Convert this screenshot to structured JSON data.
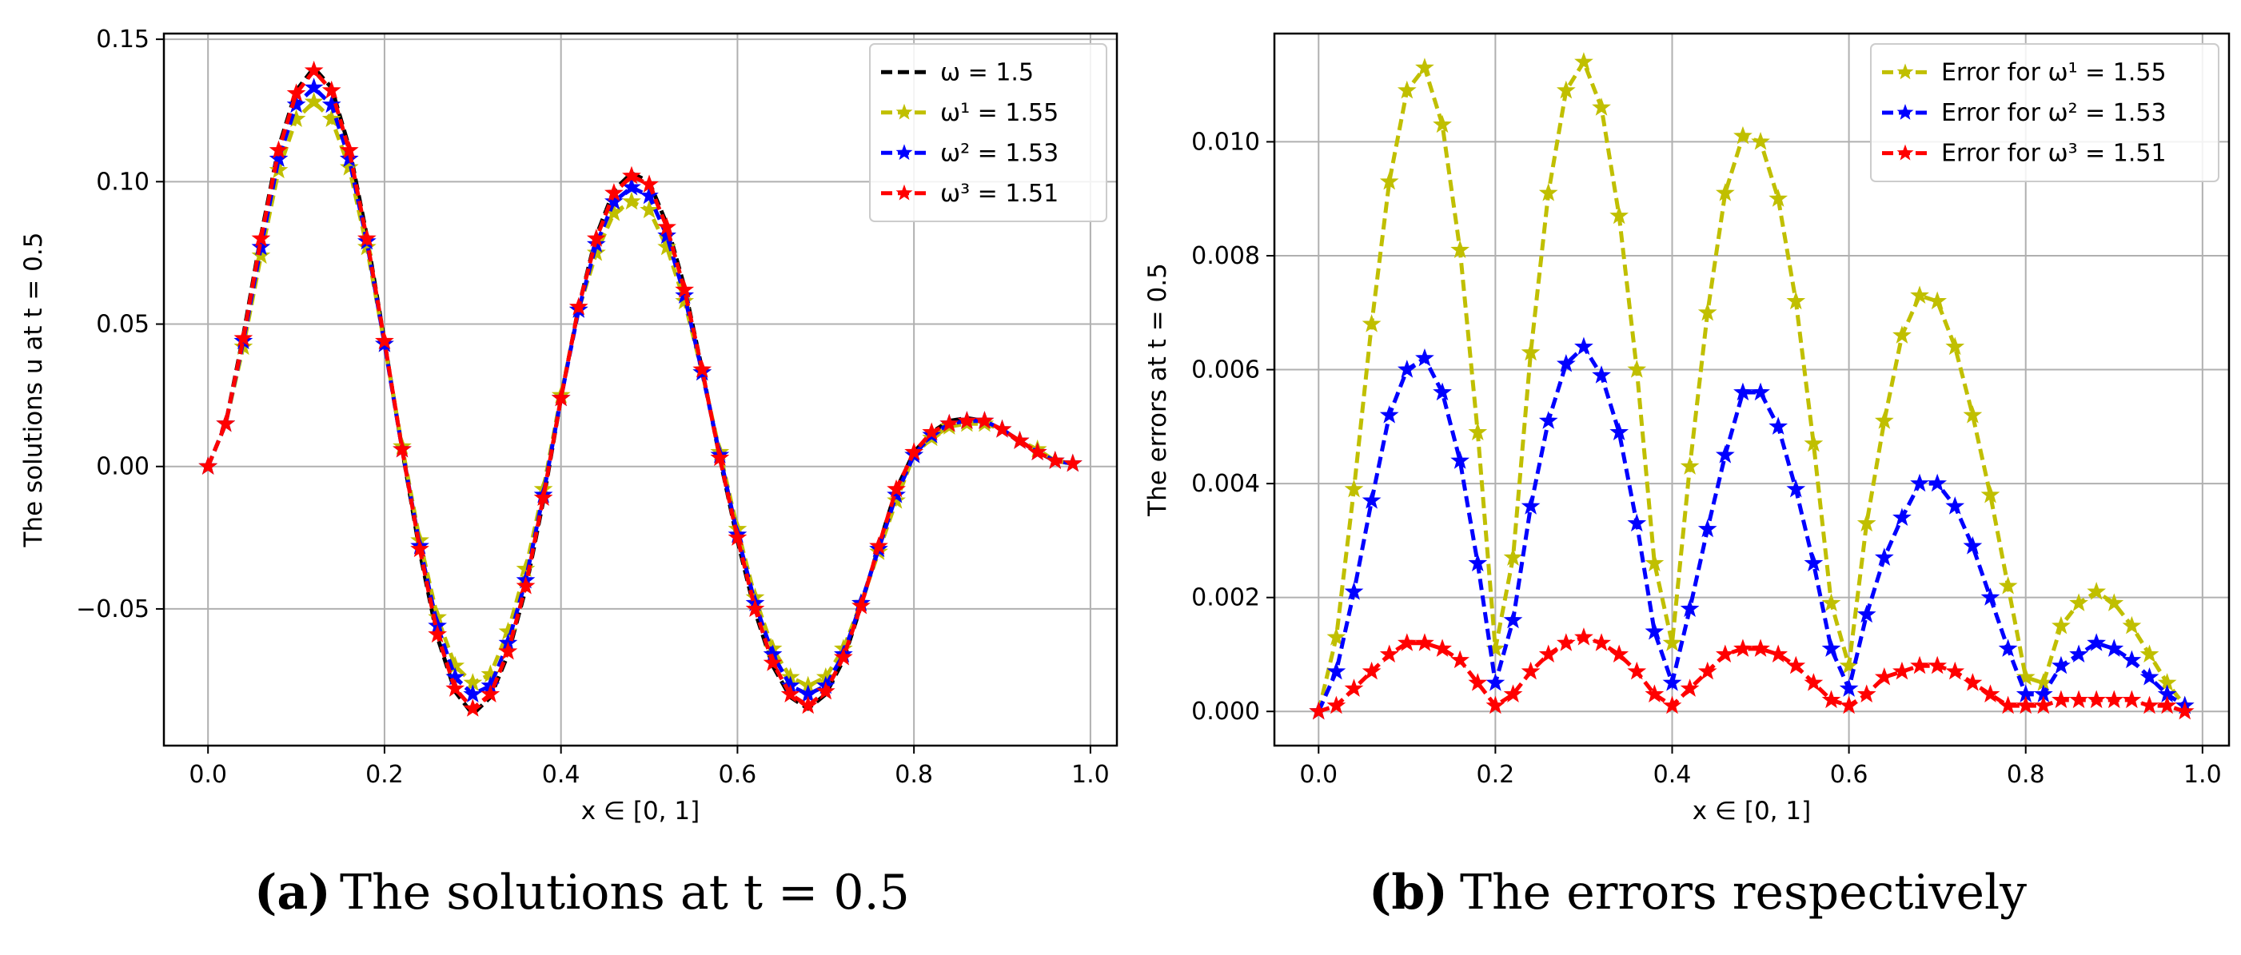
{
  "chart_data": [
    {
      "type": "line",
      "panel": "a",
      "caption_letter": "(a)",
      "caption_text": "The solutions at t = 0.5",
      "xlabel": "x ∈ [0, 1]",
      "ylabel": "The solutions u at t = 0.5",
      "xlim": [
        -0.05,
        1.03
      ],
      "ylim": [
        -0.098,
        0.152
      ],
      "xticks": [
        "0.0",
        "0.2",
        "0.4",
        "0.6",
        "0.8",
        "1.0"
      ],
      "yticks": [
        "−0.05",
        "0.00",
        "0.05",
        "0.10",
        "0.15"
      ],
      "grid": true,
      "legend_position": "top-right",
      "x": [
        0.0,
        0.02,
        0.04,
        0.06,
        0.08,
        0.1,
        0.12,
        0.14,
        0.16,
        0.18,
        0.2,
        0.22,
        0.24,
        0.26,
        0.28,
        0.3,
        0.32,
        0.34,
        0.36,
        0.38,
        0.4,
        0.42,
        0.44,
        0.46,
        0.48,
        0.5,
        0.52,
        0.54,
        0.56,
        0.58,
        0.6,
        0.62,
        0.64,
        0.66,
        0.68,
        0.7,
        0.72,
        0.74,
        0.76,
        0.78,
        0.8,
        0.82,
        0.84,
        0.86,
        0.88,
        0.9,
        0.92,
        0.94,
        0.96,
        0.98
      ],
      "series": [
        {
          "name": "ω  = 1.5",
          "color": "#000000",
          "marker": false,
          "values": [
            0.0,
            0.015,
            0.046,
            0.081,
            0.112,
            0.132,
            0.14,
            0.133,
            0.112,
            0.081,
            0.044,
            0.006,
            -0.03,
            -0.06,
            -0.079,
            -0.087,
            -0.081,
            -0.066,
            -0.043,
            -0.012,
            0.024,
            0.056,
            0.081,
            0.097,
            0.103,
            0.1,
            0.085,
            0.063,
            0.034,
            0.003,
            -0.026,
            -0.051,
            -0.07,
            -0.081,
            -0.085,
            -0.08,
            -0.068,
            -0.049,
            -0.028,
            -0.008,
            0.005,
            0.012,
            0.016,
            0.017,
            0.016,
            0.013,
            0.009,
            0.005,
            0.002,
            0.001
          ]
        },
        {
          "name": "ω¹ = 1.55",
          "color": "#c0bf00",
          "marker": true,
          "values": [
            0.0,
            0.015,
            0.042,
            0.074,
            0.104,
            0.122,
            0.128,
            0.122,
            0.105,
            0.077,
            0.043,
            0.007,
            -0.026,
            -0.053,
            -0.07,
            -0.076,
            -0.073,
            -0.058,
            -0.036,
            -0.008,
            0.025,
            0.055,
            0.075,
            0.089,
            0.093,
            0.09,
            0.077,
            0.058,
            0.033,
            0.005,
            -0.022,
            -0.046,
            -0.064,
            -0.074,
            -0.077,
            -0.074,
            -0.064,
            -0.048,
            -0.03,
            -0.012,
            0.004,
            0.01,
            0.014,
            0.015,
            0.015,
            0.013,
            0.009,
            0.006,
            0.002,
            0.001
          ]
        },
        {
          "name": "ω² = 1.53",
          "color": "#0000ff",
          "marker": true,
          "values": [
            0.0,
            0.015,
            0.044,
            0.077,
            0.108,
            0.127,
            0.133,
            0.127,
            0.108,
            0.079,
            0.043,
            0.006,
            -0.028,
            -0.056,
            -0.074,
            -0.08,
            -0.077,
            -0.062,
            -0.04,
            -0.01,
            0.024,
            0.055,
            0.078,
            0.093,
            0.098,
            0.095,
            0.081,
            0.06,
            0.033,
            0.004,
            -0.024,
            -0.048,
            -0.066,
            -0.077,
            -0.08,
            -0.077,
            -0.066,
            -0.048,
            -0.029,
            -0.01,
            0.004,
            0.011,
            0.015,
            0.016,
            0.016,
            0.013,
            0.009,
            0.005,
            0.002,
            0.001
          ]
        },
        {
          "name": "ω³ = 1.51",
          "color": "#ff0000",
          "marker": true,
          "values": [
            0.0,
            0.015,
            0.045,
            0.08,
            0.111,
            0.131,
            0.139,
            0.132,
            0.111,
            0.08,
            0.044,
            0.006,
            -0.029,
            -0.059,
            -0.078,
            -0.085,
            -0.08,
            -0.065,
            -0.042,
            -0.011,
            0.024,
            0.056,
            0.08,
            0.096,
            0.102,
            0.099,
            0.084,
            0.062,
            0.034,
            0.003,
            -0.025,
            -0.05,
            -0.069,
            -0.08,
            -0.084,
            -0.079,
            -0.067,
            -0.049,
            -0.028,
            -0.008,
            0.005,
            0.012,
            0.015,
            0.016,
            0.016,
            0.013,
            0.009,
            0.005,
            0.002,
            0.001
          ]
        }
      ]
    },
    {
      "type": "line",
      "panel": "b",
      "caption_letter": "(b)",
      "caption_text": "The errors respectively",
      "xlabel": "x ∈ [0, 1]",
      "ylabel": "The errors at t = 0.5",
      "xlim": [
        -0.05,
        1.03
      ],
      "ylim": [
        -0.0006,
        0.0119
      ],
      "xticks": [
        "0.0",
        "0.2",
        "0.4",
        "0.6",
        "0.8",
        "1.0"
      ],
      "yticks": [
        "0.000",
        "0.002",
        "0.004",
        "0.006",
        "0.008",
        "0.010"
      ],
      "grid": true,
      "legend_position": "top-right",
      "x": [
        0.0,
        0.02,
        0.04,
        0.06,
        0.08,
        0.1,
        0.12,
        0.14,
        0.16,
        0.18,
        0.2,
        0.22,
        0.24,
        0.26,
        0.28,
        0.3,
        0.32,
        0.34,
        0.36,
        0.38,
        0.4,
        0.42,
        0.44,
        0.46,
        0.48,
        0.5,
        0.52,
        0.54,
        0.56,
        0.58,
        0.6,
        0.62,
        0.64,
        0.66,
        0.68,
        0.7,
        0.72,
        0.74,
        0.76,
        0.78,
        0.8,
        0.82,
        0.84,
        0.86,
        0.88,
        0.9,
        0.92,
        0.94,
        0.96,
        0.98
      ],
      "series": [
        {
          "name": "Error for ω¹ = 1.55",
          "color": "#c0bf00",
          "marker": true,
          "values": [
            0.0,
            0.0013,
            0.0039,
            0.0068,
            0.0093,
            0.0109,
            0.0113,
            0.0103,
            0.0081,
            0.0049,
            0.0011,
            0.0027,
            0.0063,
            0.0091,
            0.0109,
            0.0114,
            0.0106,
            0.0087,
            0.006,
            0.0026,
            0.0012,
            0.0043,
            0.007,
            0.0091,
            0.0101,
            0.01,
            0.009,
            0.0072,
            0.0047,
            0.0019,
            0.0008,
            0.0033,
            0.0051,
            0.0066,
            0.0073,
            0.0072,
            0.0064,
            0.0052,
            0.0038,
            0.0022,
            0.0006,
            0.0005,
            0.0015,
            0.0019,
            0.0021,
            0.0019,
            0.0015,
            0.001,
            0.0005,
            0.0001
          ]
        },
        {
          "name": "Error for ω² = 1.53",
          "color": "#0000ff",
          "marker": true,
          "values": [
            0.0,
            0.0007,
            0.0021,
            0.0037,
            0.0052,
            0.006,
            0.0062,
            0.0056,
            0.0044,
            0.0026,
            0.0005,
            0.0016,
            0.0036,
            0.0051,
            0.0061,
            0.0064,
            0.0059,
            0.0049,
            0.0033,
            0.0014,
            0.0005,
            0.0018,
            0.0032,
            0.0045,
            0.0056,
            0.0056,
            0.005,
            0.0039,
            0.0026,
            0.0011,
            0.0004,
            0.0017,
            0.0027,
            0.0034,
            0.004,
            0.004,
            0.0036,
            0.0029,
            0.002,
            0.0011,
            0.0003,
            0.0003,
            0.0008,
            0.001,
            0.0012,
            0.0011,
            0.0009,
            0.0006,
            0.0003,
            0.0001
          ]
        },
        {
          "name": "Error for ω³ = 1.51",
          "color": "#ff0000",
          "marker": true,
          "values": [
            0.0,
            0.0001,
            0.0004,
            0.0007,
            0.001,
            0.0012,
            0.0012,
            0.0011,
            0.0009,
            0.0005,
            0.0001,
            0.0003,
            0.0007,
            0.001,
            0.0012,
            0.0013,
            0.0012,
            0.001,
            0.0007,
            0.0003,
            0.0001,
            0.0004,
            0.0007,
            0.001,
            0.0011,
            0.0011,
            0.001,
            0.0008,
            0.0005,
            0.0002,
            0.0001,
            0.0003,
            0.0006,
            0.0007,
            0.0008,
            0.0008,
            0.0007,
            0.0005,
            0.0003,
            0.0001,
            0.0001,
            0.0001,
            0.0002,
            0.0002,
            0.0002,
            0.0002,
            0.0002,
            0.0001,
            0.0001,
            0.0
          ]
        }
      ]
    }
  ]
}
